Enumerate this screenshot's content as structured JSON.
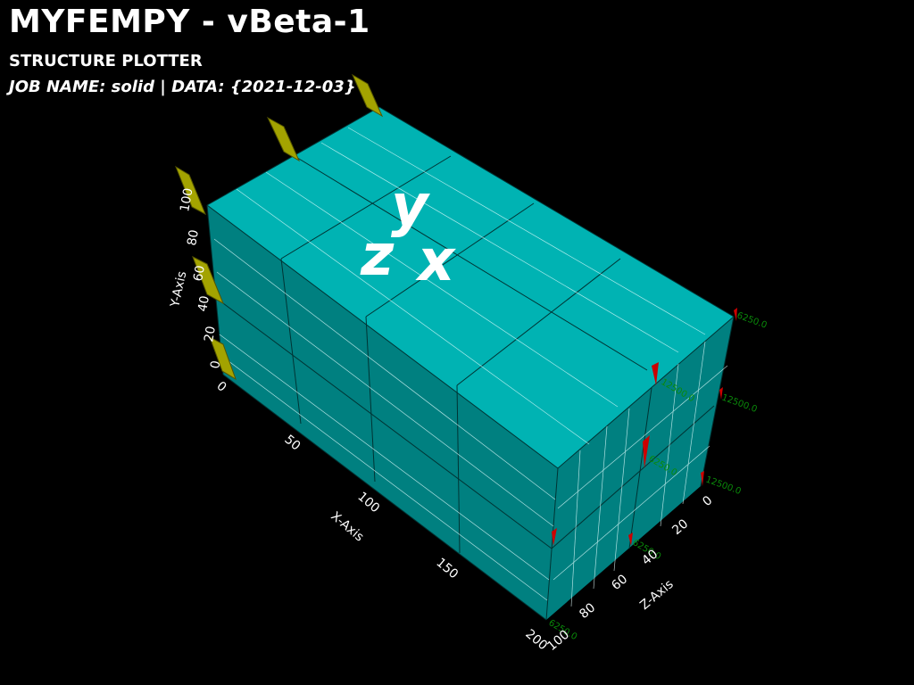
{
  "header": {
    "title": "MYFEMPY - vBeta-1",
    "subtitle": "STRUCTURE PLOTTER",
    "job_line": "JOB NAME: solid | DATA: {2021-12-03}"
  },
  "axes": {
    "y_label": "Y-Axis",
    "x_label": "X-Axis",
    "z_label": "Z-Axis",
    "y_ticks": [
      "0",
      "20",
      "40",
      "60",
      "80",
      "100"
    ],
    "x_ticks": [
      "0",
      "50",
      "100",
      "150",
      "200"
    ],
    "z_ticks": [
      "0",
      "20",
      "40",
      "60",
      "80",
      "100"
    ]
  },
  "orientation_marker": {
    "y": "y",
    "z": "z",
    "x": "x"
  },
  "loads": {
    "labels": [
      "6250.0",
      "12500.0",
      "12500.0",
      "6250.0",
      "12500.0",
      "6250.0",
      "6250.0"
    ]
  },
  "colors": {
    "mesh_top": "#00b3b3",
    "mesh_side": "#007f7f",
    "support": "#a3a300",
    "load_arrow": "#cc0000",
    "load_label": "#0a8a0a"
  }
}
